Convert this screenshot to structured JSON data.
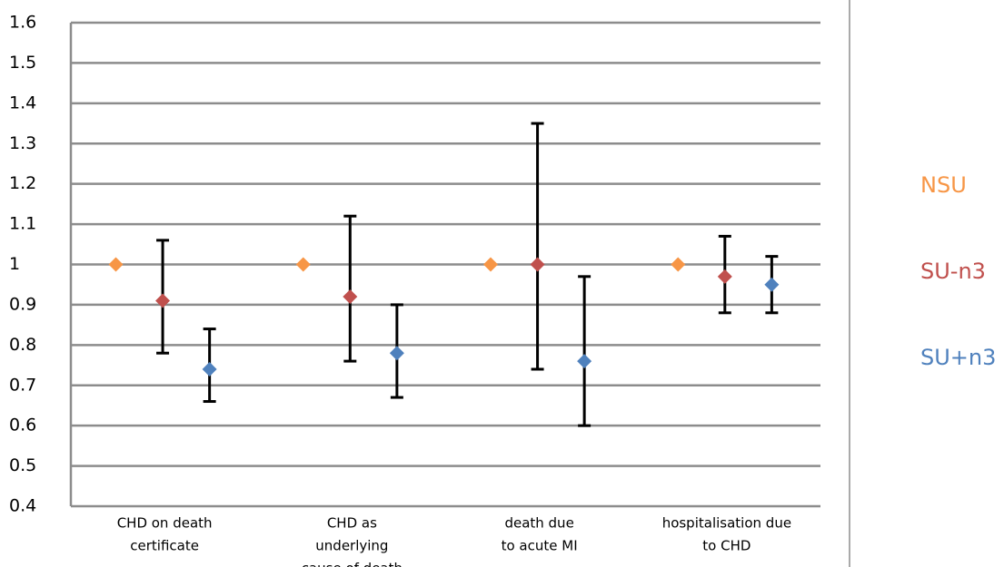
{
  "chart_data": {
    "type": "scatter",
    "categories": [
      [
        "CHD on death",
        "certificate"
      ],
      [
        "CHD as",
        "underlying",
        "cause of death"
      ],
      [
        "death due",
        "to acute MI"
      ],
      [
        "hospitalisation due",
        "to CHD"
      ]
    ],
    "series": [
      {
        "name": "NSU",
        "color": "#f79646",
        "values": [
          1,
          1,
          1,
          1
        ]
      },
      {
        "name": "SU-n3",
        "color": "#c0504d",
        "values": [
          0.91,
          0.92,
          1,
          0.97
        ],
        "lower": [
          0.78,
          0.76,
          0.74,
          0.88
        ],
        "upper": [
          1.06,
          1.12,
          1.35,
          1.07
        ]
      },
      {
        "name": "SU+n3",
        "color": "#4f81bd",
        "values": [
          0.74,
          0.78,
          0.76,
          0.95
        ],
        "lower": [
          0.66,
          0.67,
          0.6,
          0.88
        ],
        "upper": [
          0.84,
          0.9,
          0.97,
          1.02
        ]
      }
    ],
    "ylim": [
      0.4,
      1.6
    ],
    "yticks": [
      0.4,
      0.5,
      0.6,
      0.7,
      0.8,
      0.9,
      1,
      1.1,
      1.2,
      1.3,
      1.4,
      1.5,
      1.6
    ],
    "grid": true,
    "legend": "right"
  }
}
